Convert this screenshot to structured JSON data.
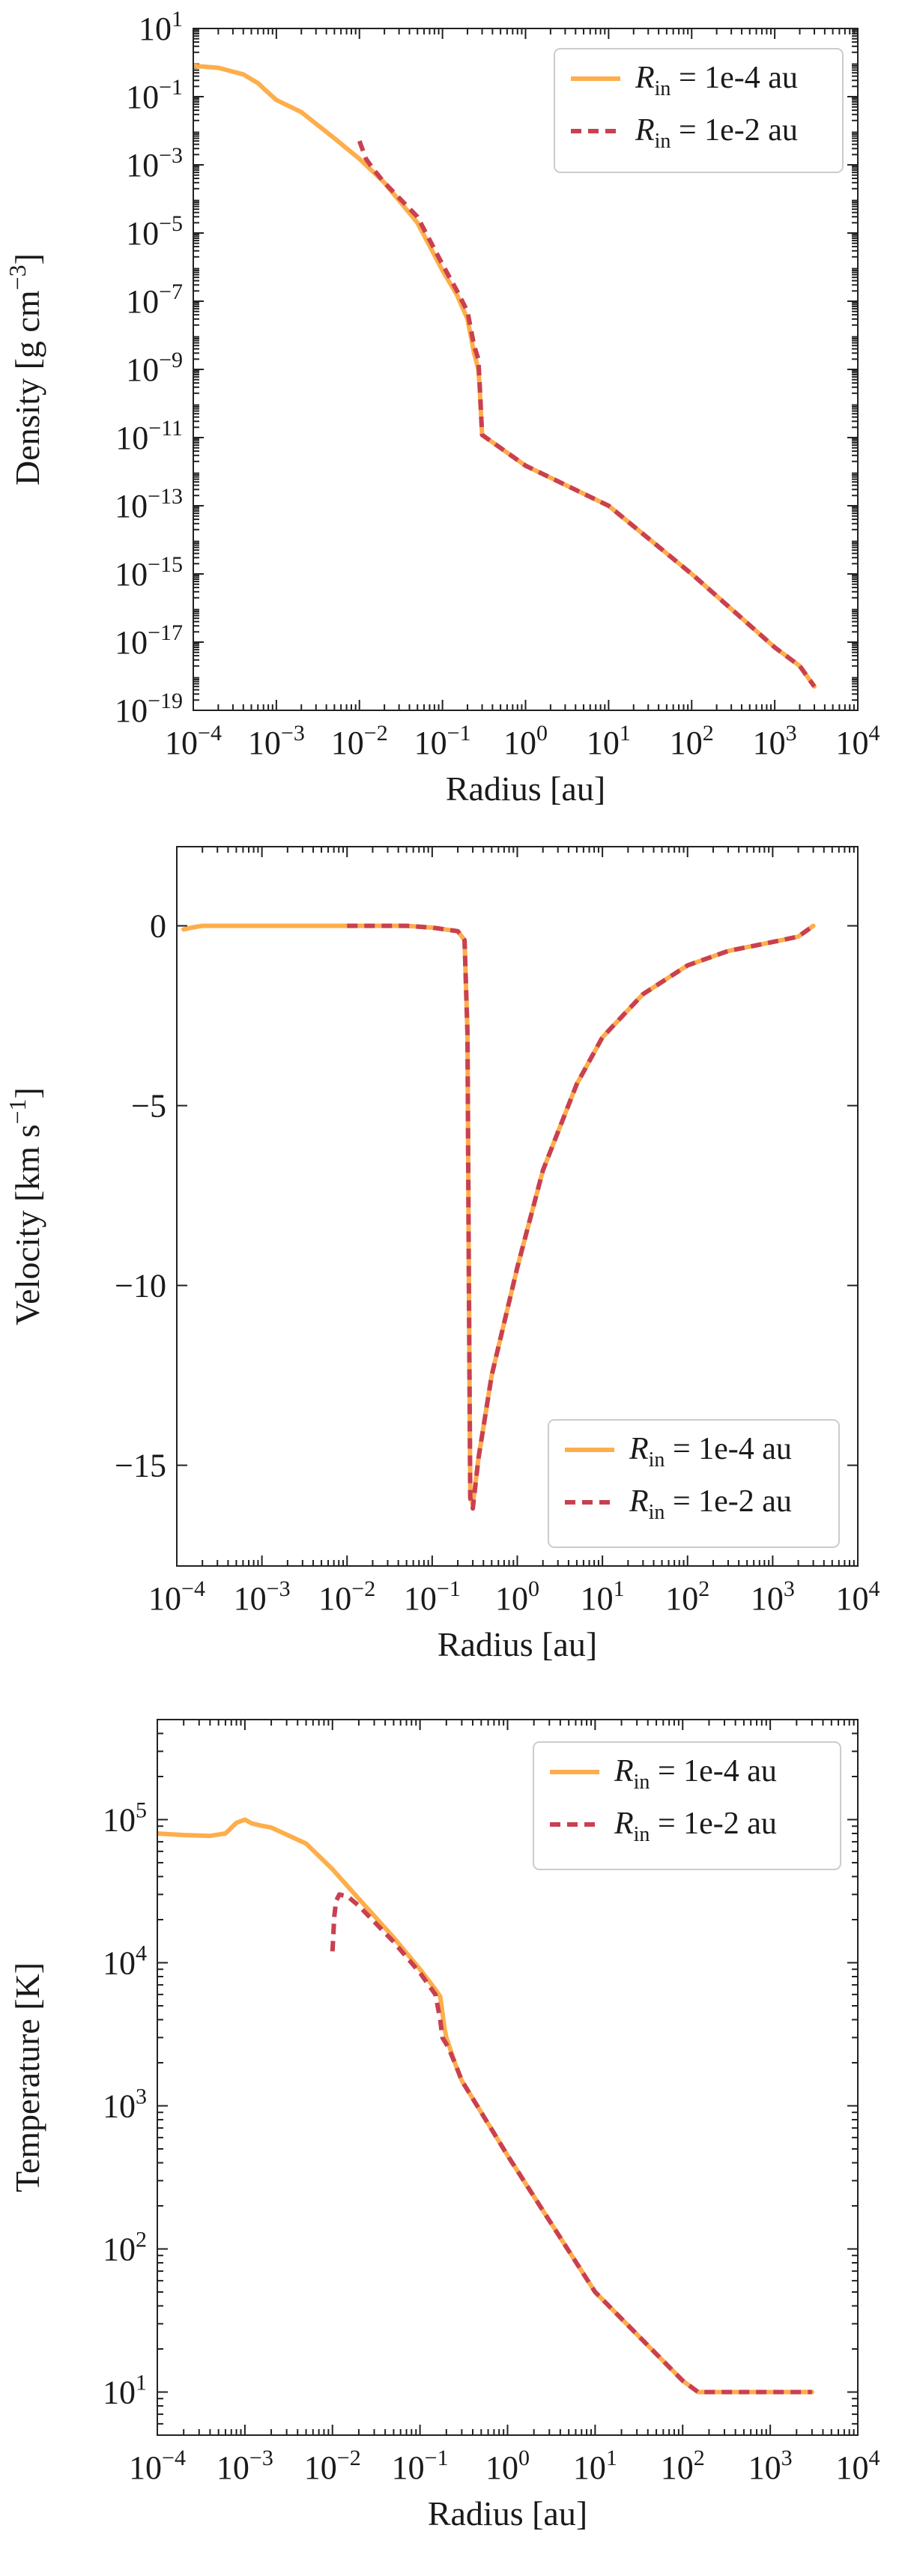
{
  "chart_data": [
    {
      "type": "line",
      "scale": "loglog",
      "xlabel": "Radius [au]",
      "ylabel": "Density [g cm",
      "ylabel_sup": "−3",
      "ylabel_end": "]",
      "xlim": [
        0.0001,
        10000
      ],
      "ylim": [
        1e-19,
        10
      ],
      "x_ticks": [
        0.0001,
        0.001,
        0.01,
        0.1,
        1,
        10,
        100,
        1000,
        10000
      ],
      "x_tick_labels": [
        {
          "base": "10",
          "exp": "−4"
        },
        {
          "base": "10",
          "exp": "−3"
        },
        {
          "base": "10",
          "exp": "−2"
        },
        {
          "base": "10",
          "exp": "−1"
        },
        {
          "base": "10",
          "exp": "0"
        },
        {
          "base": "10",
          "exp": "1"
        },
        {
          "base": "10",
          "exp": "2"
        },
        {
          "base": "10",
          "exp": "3"
        },
        {
          "base": "10",
          "exp": "4"
        }
      ],
      "y_ticks": [
        1e-19,
        1e-17,
        1e-15,
        1e-13,
        1e-11,
        1e-09,
        1e-07,
        1e-05,
        0.001,
        0.1,
        10
      ],
      "y_tick_labels": [
        {
          "base": "10",
          "exp": "−19"
        },
        {
          "base": "10",
          "exp": "−17"
        },
        {
          "base": "10",
          "exp": "−15"
        },
        {
          "base": "10",
          "exp": "−13"
        },
        {
          "base": "10",
          "exp": "−11"
        },
        {
          "base": "10",
          "exp": "−9"
        },
        {
          "base": "10",
          "exp": "−7"
        },
        {
          "base": "10",
          "exp": "−5"
        },
        {
          "base": "10",
          "exp": "−3"
        },
        {
          "base": "10",
          "exp": "−1"
        },
        {
          "base": "10",
          "exp": "1"
        }
      ],
      "legend_position": "top-right",
      "series": [
        {
          "name": "R_in = 1e-4 au",
          "legend_symbol": "R",
          "legend_sub": "in",
          "legend_value": " = 1e-4 au",
          "color": "#fdae4b",
          "style": "solid",
          "x": [
            0.0001,
            0.0002,
            0.0004,
            0.0006,
            0.0008,
            0.001,
            0.002,
            0.005,
            0.01,
            0.02,
            0.05,
            0.1,
            0.15,
            0.2,
            0.24,
            0.27,
            0.28,
            0.3,
            1,
            10,
            100,
            1000,
            2000,
            3000
          ],
          "y": [
            0.8,
            0.7,
            0.45,
            0.25,
            0.13,
            0.08,
            0.035,
            0.006,
            0.0015,
            0.0003,
            2e-05,
            8e-07,
            1.5e-07,
            3e-08,
            3e-09,
            1e-09,
            3e-10,
            1.2e-11,
            1.5e-12,
            1e-13,
            1e-15,
            7e-18,
            2e-18,
            5e-19
          ]
        },
        {
          "name": "R_in = 1e-2 au",
          "legend_symbol": "R",
          "legend_sub": "in",
          "legend_value": " = 1e-2 au",
          "color": "#c94050",
          "style": "dashed",
          "x": [
            0.01,
            0.012,
            0.015,
            0.02,
            0.05,
            0.1,
            0.15,
            0.2,
            0.24,
            0.27,
            0.28,
            0.3,
            1,
            10,
            100,
            1000,
            2000,
            3000
          ],
          "y": [
            0.005,
            0.0015,
            0.0007,
            0.0003,
            3e-05,
            1.2e-06,
            2e-07,
            5e-08,
            5e-09,
            2e-09,
            4e-10,
            1.2e-11,
            1.5e-12,
            1e-13,
            1e-15,
            7e-18,
            2e-18,
            5e-19
          ]
        }
      ]
    },
    {
      "type": "line",
      "scale": "semilogx",
      "xlabel": "Radius [au]",
      "ylabel": "Velocity [km s",
      "ylabel_sup": "−1",
      "ylabel_end": "]",
      "xlim": [
        0.0001,
        10000
      ],
      "ylim": [
        -17.8,
        2.2
      ],
      "x_ticks": [
        0.0001,
        0.001,
        0.01,
        0.1,
        1,
        10,
        100,
        1000,
        10000
      ],
      "x_tick_labels": [
        {
          "base": "10",
          "exp": "−4"
        },
        {
          "base": "10",
          "exp": "−3"
        },
        {
          "base": "10",
          "exp": "−2"
        },
        {
          "base": "10",
          "exp": "−1"
        },
        {
          "base": "10",
          "exp": "0"
        },
        {
          "base": "10",
          "exp": "1"
        },
        {
          "base": "10",
          "exp": "2"
        },
        {
          "base": "10",
          "exp": "3"
        },
        {
          "base": "10",
          "exp": "4"
        }
      ],
      "y_ticks": [
        -15,
        -10,
        -5,
        0
      ],
      "y_tick_labels": [
        "−15",
        "−10",
        "−5",
        "0"
      ],
      "legend_position": "lower-right",
      "series": [
        {
          "name": "R_in = 1e-4 au",
          "legend_symbol": "R",
          "legend_sub": "in",
          "legend_value": " = 1e-4 au",
          "color": "#fdae4b",
          "style": "solid",
          "x": [
            0.00012,
            0.00015,
            0.0002,
            0.001,
            0.01,
            0.05,
            0.1,
            0.2,
            0.24,
            0.26,
            0.27,
            0.28,
            0.3,
            0.35,
            0.5,
            1,
            2,
            5,
            10,
            30,
            100,
            300,
            1000,
            2000,
            3000
          ],
          "y": [
            -0.1,
            -0.05,
            0,
            0,
            0,
            0,
            -0.05,
            -0.15,
            -0.4,
            -3,
            -10,
            -15.8,
            -16.1,
            -14.8,
            -12.5,
            -9.5,
            -6.8,
            -4.4,
            -3.1,
            -1.9,
            -1.1,
            -0.7,
            -0.45,
            -0.3,
            0
          ]
        },
        {
          "name": "R_in = 1e-2 au",
          "legend_symbol": "R",
          "legend_sub": "in",
          "legend_value": " = 1e-2 au",
          "color": "#c94050",
          "style": "dashed",
          "x": [
            0.01,
            0.05,
            0.1,
            0.2,
            0.24,
            0.26,
            0.27,
            0.28,
            0.3,
            0.35,
            0.5,
            1,
            2,
            5,
            10,
            30,
            100,
            300,
            1000,
            2000,
            3000
          ],
          "y": [
            0,
            0,
            -0.05,
            -0.15,
            -0.4,
            -3,
            -10,
            -15.9,
            -16.2,
            -14.8,
            -12.5,
            -9.5,
            -6.8,
            -4.4,
            -3.1,
            -1.9,
            -1.1,
            -0.7,
            -0.45,
            -0.3,
            0
          ]
        }
      ]
    },
    {
      "type": "line",
      "scale": "loglog",
      "xlabel": "Radius [au]",
      "ylabel": "Temperature [K]",
      "ylabel_sup": "",
      "ylabel_end": "",
      "xlim": [
        0.0001,
        10000
      ],
      "ylim": [
        5,
        500000
      ],
      "x_ticks": [
        0.0001,
        0.001,
        0.01,
        0.1,
        1,
        10,
        100,
        1000,
        10000
      ],
      "x_tick_labels": [
        {
          "base": "10",
          "exp": "−4"
        },
        {
          "base": "10",
          "exp": "−3"
        },
        {
          "base": "10",
          "exp": "−2"
        },
        {
          "base": "10",
          "exp": "−1"
        },
        {
          "base": "10",
          "exp": "0"
        },
        {
          "base": "10",
          "exp": "1"
        },
        {
          "base": "10",
          "exp": "2"
        },
        {
          "base": "10",
          "exp": "3"
        },
        {
          "base": "10",
          "exp": "4"
        }
      ],
      "y_ticks": [
        10,
        100,
        1000,
        10000,
        100000
      ],
      "y_tick_labels": [
        {
          "base": "10",
          "exp": "1"
        },
        {
          "base": "10",
          "exp": "2"
        },
        {
          "base": "10",
          "exp": "3"
        },
        {
          "base": "10",
          "exp": "4"
        },
        {
          "base": "10",
          "exp": "5"
        }
      ],
      "legend_position": "top-right",
      "series": [
        {
          "name": "R_in = 1e-4 au",
          "legend_symbol": "R",
          "legend_sub": "in",
          "legend_value": " = 1e-4 au",
          "color": "#fdae4b",
          "style": "solid",
          "x": [
            0.0001,
            0.0002,
            0.0004,
            0.0006,
            0.0008,
            0.001,
            0.0012,
            0.0015,
            0.002,
            0.005,
            0.01,
            0.02,
            0.05,
            0.1,
            0.15,
            0.17,
            0.18,
            0.19,
            0.2,
            0.25,
            0.3,
            1,
            10,
            100,
            150,
            1000,
            3000
          ],
          "y": [
            80000,
            78000,
            77000,
            80000,
            95000,
            100000,
            94000,
            91000,
            88000,
            68000,
            45000,
            28000,
            15000,
            9000,
            6500,
            5800,
            4500,
            3500,
            3000,
            2000,
            1500,
            450,
            50,
            12,
            10,
            10,
            10
          ]
        },
        {
          "name": "R_in = 1e-2 au",
          "legend_symbol": "R",
          "legend_sub": "in",
          "legend_value": " = 1e-2 au",
          "color": "#c94050",
          "style": "dashed",
          "x": [
            0.01,
            0.0105,
            0.011,
            0.012,
            0.015,
            0.02,
            0.05,
            0.1,
            0.15,
            0.17,
            0.18,
            0.2,
            0.22,
            0.25,
            0.3,
            1,
            10,
            100,
            150,
            1000,
            3000
          ],
          "y": [
            12000,
            21000,
            27000,
            30000,
            29000,
            25000,
            14000,
            8500,
            6000,
            4000,
            3000,
            2700,
            2400,
            2000,
            1500,
            450,
            50,
            12,
            10,
            10,
            10
          ]
        }
      ]
    }
  ]
}
